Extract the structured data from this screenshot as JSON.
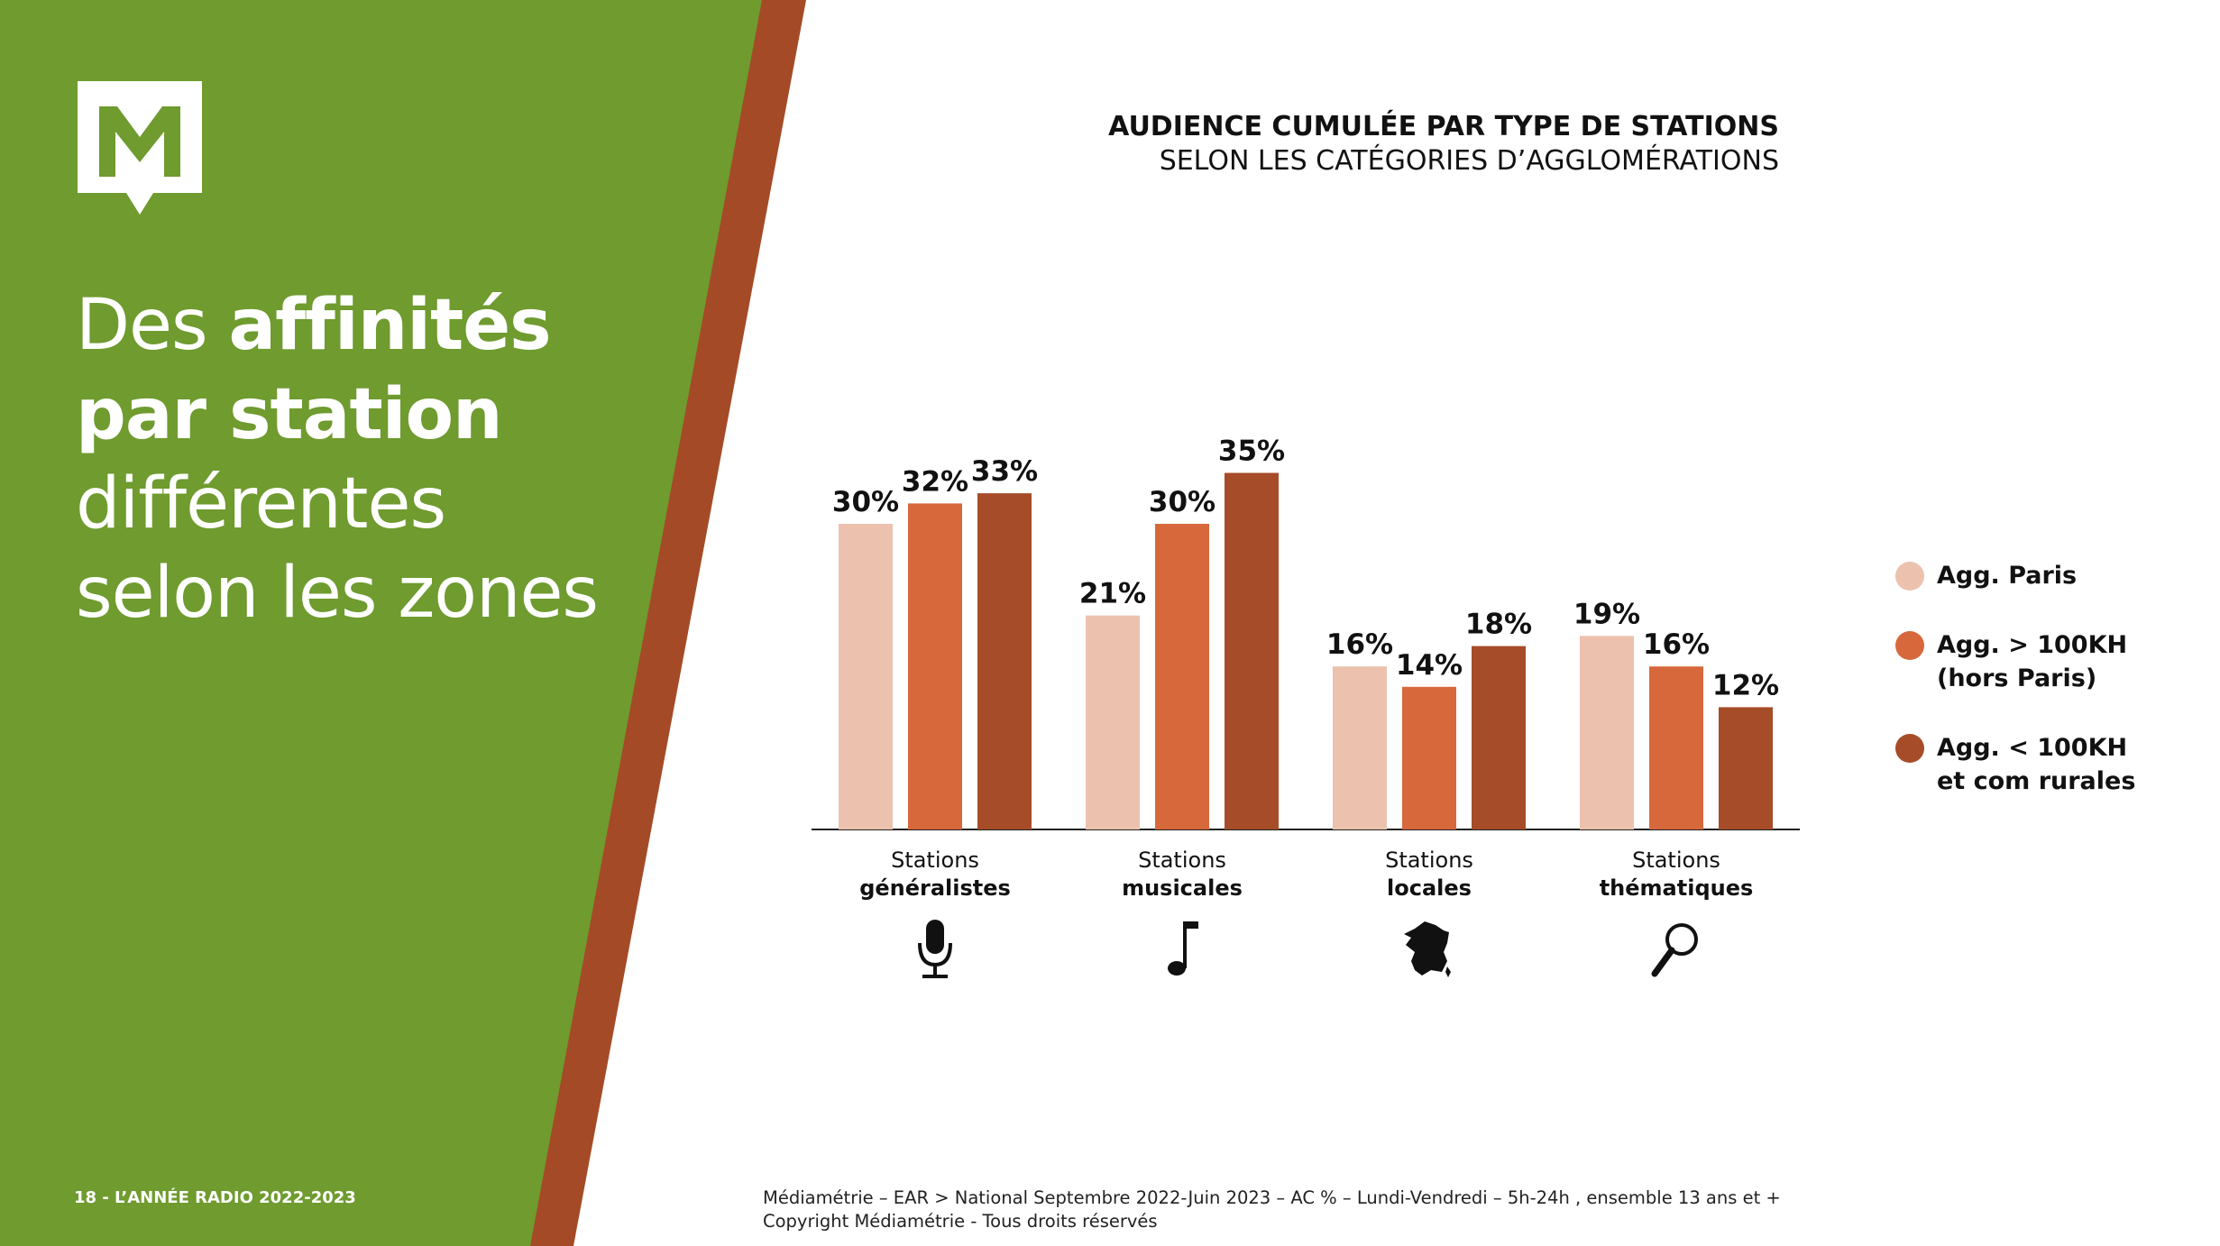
{
  "colors": {
    "green": "#6f9b2f",
    "rust_stripe": "#a54a26",
    "series": [
      "#ecc2af",
      "#d7683c",
      "#a64c28"
    ]
  },
  "logo": {
    "icon": "mediametrie-logo-icon"
  },
  "headline": {
    "line1_normal": "Des ",
    "line1_bold": "affinités",
    "line2_bold": "par station",
    "line3_normal": "différentes",
    "line4_normal": "selon les zones"
  },
  "footer": {
    "page_label": "18 - L’ANNÉE RADIO 2022-2023",
    "source_line1": "Médiamétrie – EAR > National Septembre 2022-Juin 2023 – AC % – Lundi-Vendredi – 5h-24h , ensemble 13 ans et +",
    "source_line2": "Copyright Médiamétrie - Tous droits réservés"
  },
  "chart_data": {
    "type": "bar",
    "title": "AUDIENCE CUMULÉE PAR TYPE DE STATIONS",
    "subtitle": "SELON LES CATÉGORIES D’AGGLOMÉRATIONS",
    "categories": [
      {
        "line1": "Stations",
        "line2": "généralistes",
        "icon": "microphone-icon"
      },
      {
        "line1": "Stations",
        "line2": "musicales",
        "icon": "music-note-icon"
      },
      {
        "line1": "Stations",
        "line2": "locales",
        "icon": "france-map-icon"
      },
      {
        "line1": "Stations",
        "line2": "thématiques",
        "icon": "magnifier-icon"
      }
    ],
    "series": [
      {
        "name": "Agg. Paris",
        "values": [
          30,
          21,
          16,
          19
        ],
        "color": "#ecc2af"
      },
      {
        "name": "Agg. > 100KH\n(hors Paris)",
        "values": [
          32,
          30,
          14,
          16
        ],
        "color": "#d7683c"
      },
      {
        "name": "Agg. < 100KH\net com rurales",
        "values": [
          33,
          35,
          18,
          12
        ],
        "color": "#a64c28"
      }
    ],
    "value_suffix": "%",
    "ylim": [
      0,
      35
    ],
    "grid": false,
    "legend_position": "right"
  }
}
